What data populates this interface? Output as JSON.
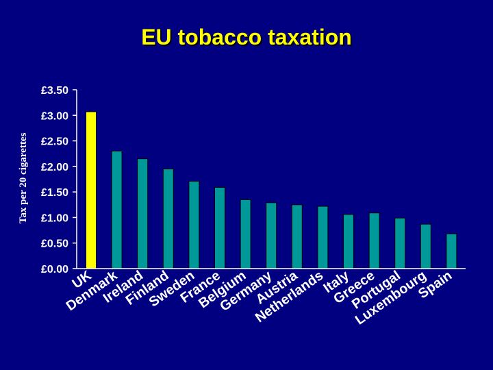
{
  "title": "EU tobacco taxation",
  "chart_data": {
    "type": "bar",
    "title": "EU tobacco taxation",
    "xlabel": "",
    "ylabel": "Tax per 20 cigarettes",
    "ylim": [
      0,
      3.5
    ],
    "yticks": [
      "£0.00",
      "£0.50",
      "£1.00",
      "£1.50",
      "£2.00",
      "£2.50",
      "£3.00",
      "£3.50"
    ],
    "grid": false,
    "legend": "none",
    "categories": [
      "UK",
      "Denmark",
      "Ireland",
      "Finland",
      "Sweden",
      "France",
      "Belgium",
      "Germany",
      "Austria",
      "Netherlands",
      "Italy",
      "Greece",
      "Portugal",
      "Luxembourg",
      "Spain"
    ],
    "values": [
      3.07,
      2.3,
      2.15,
      1.95,
      1.71,
      1.59,
      1.35,
      1.29,
      1.25,
      1.22,
      1.06,
      1.09,
      0.99,
      0.87,
      0.68
    ],
    "colors": {
      "highlight": "#ffff00",
      "bar": "#009999",
      "bar_edge": "#000000",
      "plot_bg": "#000080",
      "axis": "#ffffff",
      "text": "#ffffff"
    }
  }
}
